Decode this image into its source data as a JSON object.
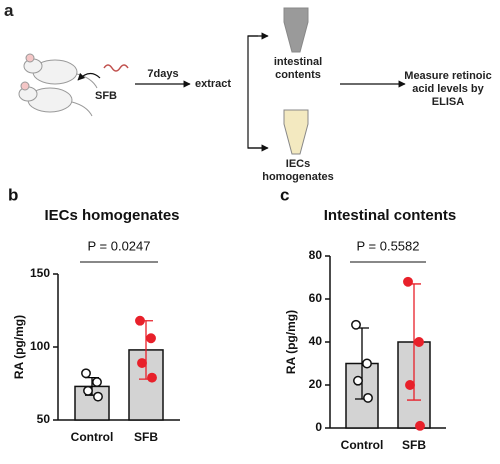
{
  "diagram": {
    "panel": "a",
    "duration": "7days",
    "agent": "SFB",
    "action": "extract",
    "samples": [
      "intestinal contents",
      "IECs homogenates"
    ],
    "readout": "Measure retinoic acid levels by ELISA"
  },
  "chart_data": [
    {
      "type": "bar",
      "panel": "b",
      "title": "IECs homogenates",
      "ylabel": "RA (pg/mg)",
      "categories": [
        "Control",
        "SFB"
      ],
      "values": [
        73,
        98
      ],
      "errors": [
        6,
        20
      ],
      "points": [
        [
          82,
          76,
          70,
          66
        ],
        [
          118,
          106,
          89,
          79
        ]
      ],
      "bar_color": "#d3d3d3",
      "point_colors": [
        "#ffffff",
        "#e8202a"
      ],
      "error_colors": [
        "#000000",
        "#e8202a"
      ],
      "annotation": "P = 0.0247",
      "ylim": [
        50,
        150
      ],
      "yticks": [
        50,
        100,
        150
      ]
    },
    {
      "type": "bar",
      "panel": "c",
      "title": "Intestinal contents",
      "ylabel": "RA (pg/mg)",
      "categories": [
        "Control",
        "SFB"
      ],
      "values": [
        30,
        40
      ],
      "errors": [
        16.5,
        27
      ],
      "points": [
        [
          48,
          30,
          22,
          14
        ],
        [
          68,
          40,
          20,
          1
        ]
      ],
      "bar_color": "#d3d3d3",
      "point_colors": [
        "#ffffff",
        "#e8202a"
      ],
      "error_colors": [
        "#000000",
        "#e8202a"
      ],
      "annotation": "P = 0.5582",
      "ylim": [
        0,
        80
      ],
      "yticks": [
        0,
        20,
        40,
        60,
        80
      ]
    }
  ]
}
